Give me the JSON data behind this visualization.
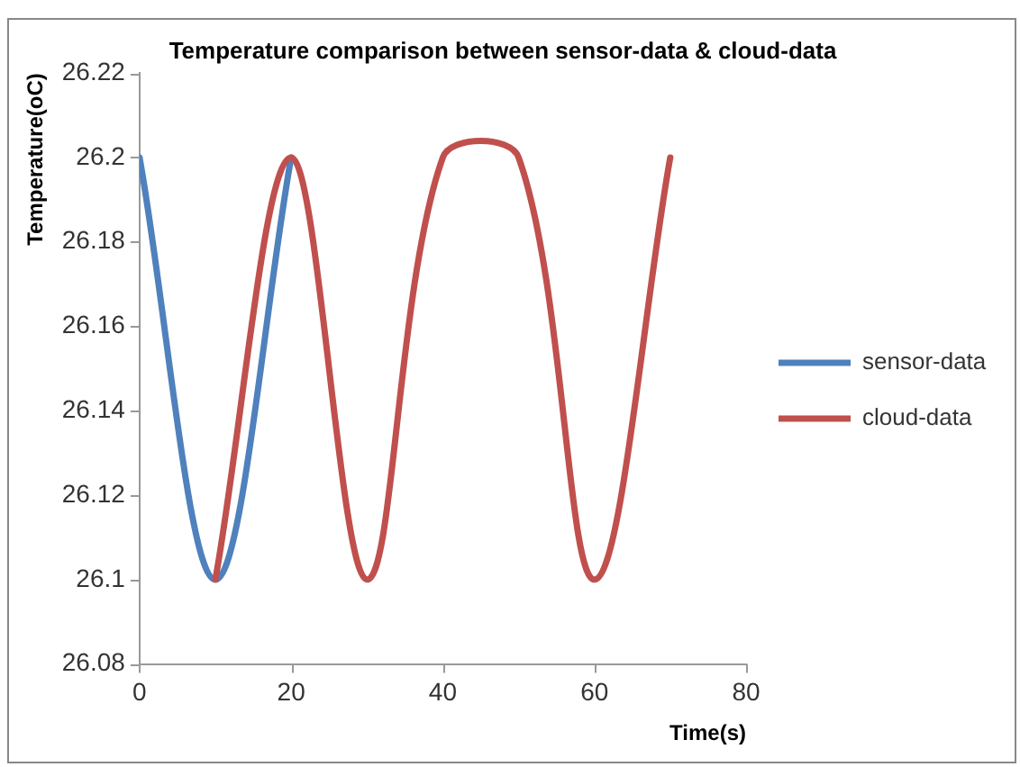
{
  "chart_data": {
    "type": "line",
    "title": "Temperature comparison between sensor-data & cloud-data",
    "xlabel": "Time(s)",
    "ylabel": "Temperature(oC)",
    "xlim": [
      0,
      80
    ],
    "xticks": [
      0,
      20,
      40,
      60,
      80
    ],
    "ylim": [
      26.08,
      26.22
    ],
    "yticks": [
      26.08,
      26.1,
      26.12,
      26.14,
      26.16,
      26.18,
      26.2,
      26.22
    ],
    "grid": false,
    "legend": "right",
    "marker": "none",
    "line_style": "solid",
    "series": [
      {
        "name": "sensor-data",
        "color": "#4f81bd",
        "x": [
          0,
          10,
          20
        ],
        "values": [
          26.2,
          26.1,
          26.2
        ]
      },
      {
        "name": "cloud-data",
        "color": "#c0504d",
        "x": [
          10,
          20,
          30,
          40,
          50,
          60,
          70
        ],
        "values": [
          26.1,
          26.2,
          26.1,
          26.2,
          26.2,
          26.1,
          26.2
        ]
      }
    ]
  }
}
